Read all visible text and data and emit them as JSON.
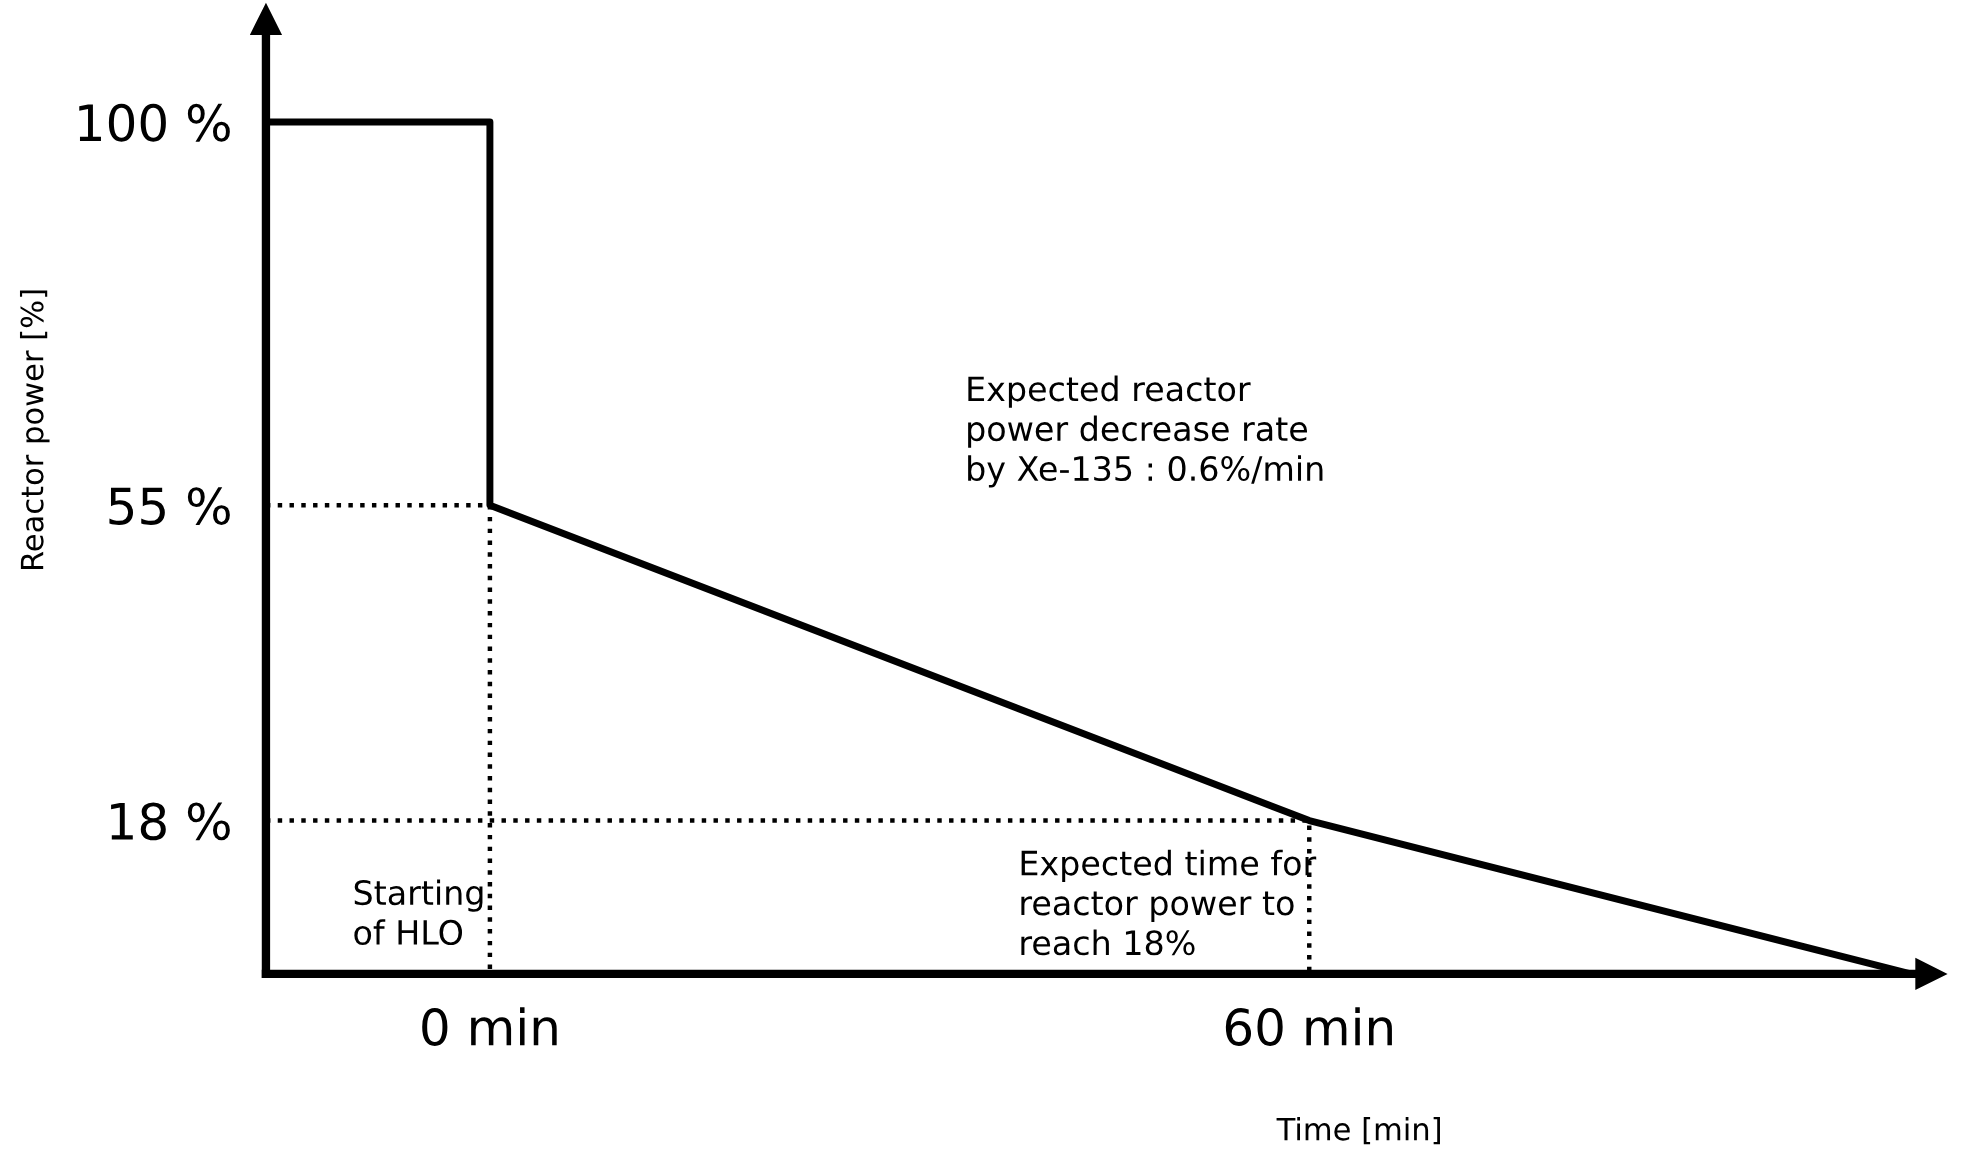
{
  "chart_data": {
    "type": "line",
    "xlabel": "Time [min]",
    "ylabel": "Reactor power [%]",
    "xlim": [
      -16.4,
      105.5
    ],
    "ylim": [
      0,
      112
    ],
    "xticks": [
      {
        "value": 0,
        "label": "0 min"
      },
      {
        "value": 60,
        "label": "60 min"
      }
    ],
    "yticks": [
      {
        "value": 18,
        "label": "18 %"
      },
      {
        "value": 55,
        "label": "55 %"
      },
      {
        "value": 100,
        "label": "100 %"
      }
    ],
    "grid": false,
    "legend": false,
    "marker": "none",
    "series": [
      {
        "color": "#000000",
        "line_style": "solid",
        "x": [
          -16.4,
          0,
          0,
          60,
          104
        ],
        "values": [
          100,
          100,
          55,
          18,
          0
        ]
      },
      {
        "color": "#000000",
        "line_style": "dotted",
        "x": [
          -16.4,
          0,
          0
        ],
        "values": [
          55,
          55,
          0
        ]
      },
      {
        "color": "#000000",
        "line_style": "dotted",
        "x": [
          -16.4,
          60,
          60
        ],
        "values": [
          18,
          18,
          0
        ]
      }
    ],
    "annotations": [
      "Expected reactor\npower decrease rate\nby Xe-135 : 0.6%/min",
      "Starting\nof HLO",
      "Expected time for\nreactor power to\nreach 18%"
    ]
  }
}
